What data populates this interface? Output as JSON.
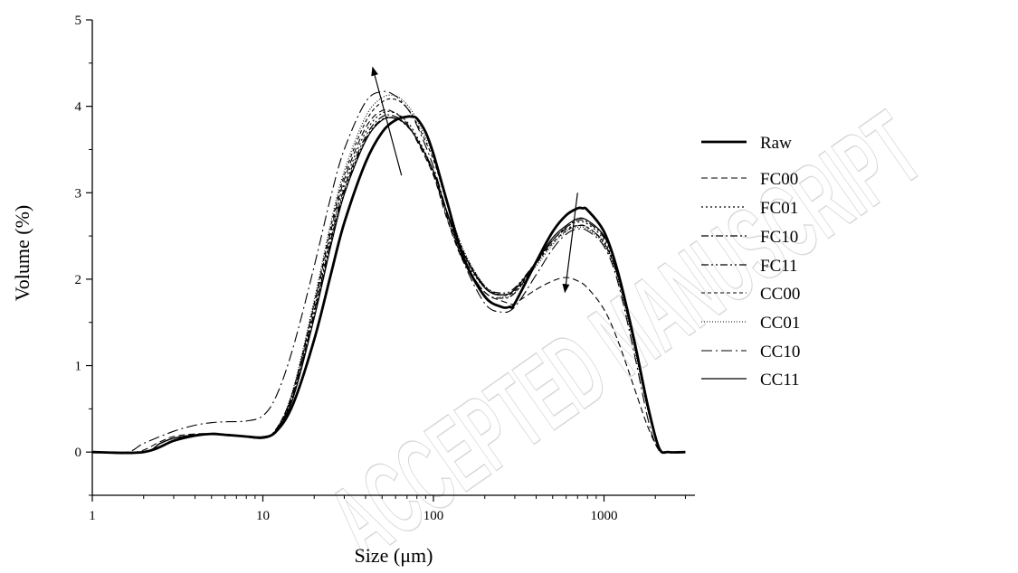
{
  "watermark_text": "ACCEPTED MANUSCRIPT",
  "chart_data": {
    "type": "line",
    "xlabel": "Size (μm)",
    "ylabel": "Volume (%)",
    "x_scale": "log",
    "xlim": [
      1,
      3200
    ],
    "ylim": [
      -0.5,
      5
    ],
    "x_ticks": [
      {
        "value": 1,
        "label": "1"
      },
      {
        "value": 10,
        "label": "10"
      },
      {
        "value": 100,
        "label": "100"
      },
      {
        "value": 1000,
        "label": "1000"
      }
    ],
    "y_ticks": [
      {
        "value": 0,
        "label": "0"
      },
      {
        "value": 1,
        "label": "1"
      },
      {
        "value": 2,
        "label": "2"
      },
      {
        "value": 3,
        "label": "3"
      },
      {
        "value": 4,
        "label": "4"
      },
      {
        "value": 5,
        "label": "5"
      }
    ],
    "grid": false,
    "legend_position": "right",
    "series": [
      {
        "name": "Raw",
        "style": "solid-bold",
        "x": [
          1,
          2,
          3,
          4,
          5,
          6,
          8,
          10,
          12,
          15,
          20,
          25,
          30,
          40,
          50,
          60,
          70,
          75,
          80,
          90,
          100,
          120,
          150,
          200,
          250,
          280,
          300,
          400,
          500,
          600,
          700,
          750,
          800,
          1000,
          1200,
          1500,
          1800,
          2100,
          2400,
          3000
        ],
        "y": [
          0,
          0,
          0.13,
          0.19,
          0.21,
          0.2,
          0.18,
          0.17,
          0.24,
          0.55,
          1.3,
          2.05,
          2.65,
          3.35,
          3.7,
          3.84,
          3.88,
          3.88,
          3.86,
          3.7,
          3.45,
          2.9,
          2.25,
          1.8,
          1.68,
          1.68,
          1.72,
          2.2,
          2.55,
          2.74,
          2.82,
          2.82,
          2.8,
          2.55,
          2.1,
          1.3,
          0.55,
          0.05,
          0,
          0
        ]
      },
      {
        "name": "FC00",
        "style": "dashed",
        "x": [
          1,
          1.8,
          2.5,
          3,
          4,
          5,
          7,
          10,
          12,
          15,
          20,
          25,
          30,
          40,
          50,
          60,
          70,
          80,
          100,
          120,
          150,
          200,
          250,
          280,
          300,
          400,
          500,
          600,
          700,
          800,
          1000,
          1200,
          1500,
          1800,
          2100,
          2300,
          3000
        ],
        "y": [
          0,
          0,
          0.12,
          0.18,
          0.21,
          0.21,
          0.19,
          0.17,
          0.27,
          0.7,
          1.7,
          2.55,
          3.15,
          3.75,
          3.95,
          3.92,
          3.8,
          3.6,
          3.2,
          2.7,
          2.2,
          1.85,
          1.75,
          1.72,
          1.72,
          1.88,
          1.98,
          2.02,
          1.98,
          1.9,
          1.65,
          1.3,
          0.75,
          0.3,
          0.02,
          0,
          0
        ]
      },
      {
        "name": "FC01",
        "style": "dotted",
        "x": [
          1,
          2,
          2.5,
          3,
          4,
          5,
          7,
          10,
          12,
          15,
          20,
          25,
          30,
          40,
          50,
          60,
          70,
          80,
          100,
          120,
          150,
          200,
          250,
          300,
          400,
          500,
          600,
          700,
          800,
          1000,
          1200,
          1500,
          1800,
          2100,
          2300,
          3000
        ],
        "y": [
          0,
          0,
          0.1,
          0.16,
          0.2,
          0.21,
          0.19,
          0.17,
          0.27,
          0.68,
          1.65,
          2.5,
          3.1,
          3.7,
          3.92,
          3.92,
          3.82,
          3.65,
          3.25,
          2.75,
          2.25,
          1.9,
          1.82,
          1.88,
          2.2,
          2.45,
          2.6,
          2.66,
          2.64,
          2.45,
          2.05,
          1.25,
          0.5,
          0.05,
          0,
          0
        ]
      },
      {
        "name": "FC10",
        "style": "dash-dot",
        "x": [
          1,
          2,
          2.5,
          3,
          4,
          5,
          7,
          10,
          12,
          15,
          20,
          25,
          30,
          40,
          50,
          60,
          70,
          80,
          100,
          120,
          150,
          200,
          250,
          300,
          400,
          500,
          600,
          700,
          800,
          1000,
          1200,
          1500,
          1800,
          2100,
          2300,
          3000
        ],
        "y": [
          0,
          0,
          0.1,
          0.16,
          0.2,
          0.21,
          0.19,
          0.16,
          0.26,
          0.66,
          1.62,
          2.45,
          3.05,
          3.65,
          3.88,
          3.88,
          3.78,
          3.62,
          3.22,
          2.72,
          2.22,
          1.85,
          1.78,
          1.84,
          2.18,
          2.45,
          2.6,
          2.68,
          2.66,
          2.48,
          2.1,
          1.3,
          0.55,
          0.05,
          0,
          0
        ]
      },
      {
        "name": "FC11",
        "style": "dash-dot-dot",
        "x": [
          1,
          2,
          2.5,
          3,
          4,
          5,
          7,
          10,
          12,
          15,
          20,
          25,
          30,
          40,
          50,
          60,
          70,
          80,
          100,
          120,
          150,
          200,
          250,
          300,
          400,
          500,
          600,
          700,
          800,
          1000,
          1200,
          1500,
          1800,
          2100,
          2300,
          3000
        ],
        "y": [
          0,
          0,
          0.1,
          0.16,
          0.2,
          0.21,
          0.19,
          0.16,
          0.26,
          0.64,
          1.6,
          2.42,
          3.02,
          3.62,
          3.85,
          3.86,
          3.77,
          3.62,
          3.24,
          2.76,
          2.28,
          1.92,
          1.84,
          1.9,
          2.2,
          2.45,
          2.58,
          2.62,
          2.6,
          2.42,
          2.05,
          1.28,
          0.55,
          0.05,
          0,
          0
        ]
      },
      {
        "name": "CC00",
        "style": "short-dash",
        "x": [
          1,
          2,
          2.5,
          3,
          4,
          5,
          7,
          10,
          12,
          15,
          20,
          25,
          30,
          40,
          50,
          60,
          70,
          80,
          100,
          120,
          150,
          200,
          250,
          300,
          400,
          500,
          600,
          700,
          800,
          1000,
          1200,
          1500,
          1800,
          2100,
          2300,
          3000
        ],
        "y": [
          0,
          0,
          0.1,
          0.16,
          0.2,
          0.21,
          0.19,
          0.16,
          0.26,
          0.7,
          1.72,
          2.6,
          3.2,
          3.82,
          4.05,
          4.08,
          3.98,
          3.8,
          3.38,
          2.88,
          2.32,
          1.92,
          1.82,
          1.86,
          2.18,
          2.42,
          2.56,
          2.62,
          2.6,
          2.42,
          2.04,
          1.25,
          0.52,
          0.05,
          0,
          0
        ]
      },
      {
        "name": "CC01",
        "style": "fine-dot",
        "x": [
          1,
          2,
          2.5,
          3,
          4,
          5,
          7,
          10,
          12,
          15,
          20,
          25,
          30,
          40,
          50,
          60,
          70,
          80,
          100,
          120,
          150,
          200,
          250,
          300,
          400,
          500,
          600,
          700,
          800,
          1000,
          1200,
          1500,
          1800,
          2100,
          2300,
          3000
        ],
        "y": [
          0,
          0,
          0.1,
          0.16,
          0.2,
          0.21,
          0.19,
          0.16,
          0.26,
          0.72,
          1.76,
          2.65,
          3.25,
          3.88,
          4.1,
          4.12,
          4.02,
          3.84,
          3.42,
          2.9,
          2.34,
          1.92,
          1.8,
          1.84,
          2.15,
          2.4,
          2.55,
          2.6,
          2.58,
          2.4,
          2.02,
          1.22,
          0.5,
          0.04,
          0,
          0
        ]
      },
      {
        "name": "CC10",
        "style": "long-dash-dot",
        "x": [
          1,
          1.6,
          2,
          3,
          4,
          5,
          6,
          8,
          10,
          12,
          15,
          20,
          25,
          30,
          40,
          50,
          60,
          70,
          80,
          100,
          120,
          150,
          200,
          250,
          300,
          400,
          500,
          600,
          700,
          800,
          1000,
          1200,
          1500,
          1800,
          2000,
          2200,
          3000
        ],
        "y": [
          0,
          0,
          0.1,
          0.24,
          0.31,
          0.34,
          0.35,
          0.36,
          0.42,
          0.65,
          1.2,
          2.15,
          2.95,
          3.5,
          4.05,
          4.17,
          4.12,
          3.98,
          3.78,
          3.3,
          2.78,
          2.2,
          1.72,
          1.62,
          1.68,
          2.05,
          2.35,
          2.52,
          2.58,
          2.56,
          2.38,
          1.98,
          1.15,
          0.4,
          0.1,
          0,
          0
        ]
      },
      {
        "name": "CC11",
        "style": "solid-thin",
        "x": [
          1,
          2,
          2.5,
          3,
          4,
          5,
          7,
          10,
          12,
          15,
          20,
          25,
          30,
          40,
          50,
          60,
          70,
          80,
          100,
          120,
          150,
          200,
          250,
          300,
          400,
          500,
          600,
          700,
          800,
          1000,
          1200,
          1500,
          1800,
          2100,
          2300,
          3000
        ],
        "y": [
          0,
          0,
          0.1,
          0.16,
          0.2,
          0.21,
          0.19,
          0.16,
          0.25,
          0.62,
          1.55,
          2.38,
          2.98,
          3.6,
          3.84,
          3.86,
          3.78,
          3.62,
          3.25,
          2.78,
          2.3,
          1.9,
          1.82,
          1.88,
          2.2,
          2.48,
          2.62,
          2.7,
          2.68,
          2.5,
          2.12,
          1.32,
          0.56,
          0.05,
          0,
          0
        ]
      }
    ],
    "annotations": [
      {
        "type": "arrow",
        "from": {
          "x": 65,
          "y": 3.2
        },
        "to": {
          "x": 44,
          "y": 4.45
        }
      },
      {
        "type": "arrow",
        "from": {
          "x": 700,
          "y": 3.0
        },
        "to": {
          "x": 590,
          "y": 1.85
        }
      }
    ]
  }
}
